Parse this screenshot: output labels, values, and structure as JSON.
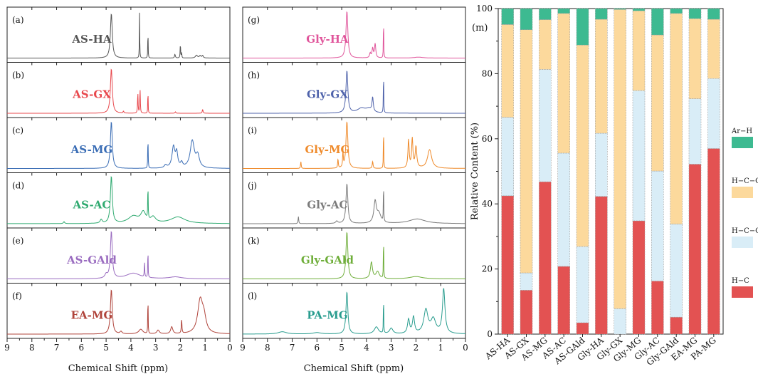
{
  "chart_data": [
    {
      "type": "line",
      "xlabel": "Chemical Shift (ppm)",
      "xlim": [
        9,
        0
      ],
      "x_ticks": [
        "9",
        "8",
        "7",
        "6",
        "5",
        "4",
        "3",
        "2",
        "1",
        "0"
      ],
      "panels": [
        {
          "letter": "(a)",
          "name": "AS-HA",
          "color": "#555555",
          "peaks": [
            [
              4.79,
              0.95,
              0.045
            ],
            [
              3.65,
              1.0,
              0.008
            ],
            [
              3.31,
              0.65,
              0.008
            ],
            [
              2.22,
              0.08,
              0.02
            ],
            [
              2.0,
              0.3,
              0.012
            ],
            [
              1.95,
              0.12,
              0.01
            ],
            [
              1.35,
              0.06,
              0.05
            ],
            [
              1.2,
              0.05,
              0.04
            ],
            [
              1.1,
              0.05,
              0.03
            ]
          ]
        },
        {
          "letter": "(b)",
          "name": "AS-GX",
          "color": "#e8484d",
          "peaks": [
            [
              4.79,
              0.95,
              0.045
            ],
            [
              3.72,
              0.45,
              0.012
            ],
            [
              3.63,
              0.55,
              0.012
            ],
            [
              3.31,
              0.55,
              0.008
            ],
            [
              4.3,
              0.04,
              0.02
            ],
            [
              2.2,
              0.03,
              0.02
            ],
            [
              1.1,
              0.08,
              0.02
            ]
          ]
        },
        {
          "letter": "(c)",
          "name": "AS-MG",
          "color": "#3a6db5",
          "peaks": [
            [
              4.79,
              1.0,
              0.045
            ],
            [
              3.31,
              0.68,
              0.01
            ],
            [
              2.28,
              0.45,
              0.07
            ],
            [
              2.15,
              0.3,
              0.05
            ],
            [
              1.95,
              0.1,
              0.05
            ],
            [
              1.52,
              0.58,
              0.1
            ],
            [
              1.3,
              0.25,
              0.08
            ],
            [
              2.6,
              0.06,
              0.06
            ]
          ]
        },
        {
          "letter": "(d)",
          "name": "AS-AC",
          "color": "#2faa70",
          "peaks": [
            [
              4.79,
              1.0,
              0.045
            ],
            [
              3.31,
              0.75,
              0.01
            ],
            [
              3.9,
              0.15,
              0.25
            ],
            [
              3.5,
              0.22,
              0.12
            ],
            [
              3.1,
              0.12,
              0.12
            ],
            [
              2.1,
              0.14,
              0.35
            ],
            [
              5.2,
              0.08,
              0.05
            ],
            [
              6.7,
              0.04,
              0.03
            ]
          ]
        },
        {
          "letter": "(e)",
          "name": "AS-GAld",
          "color": "#9a6cc0",
          "peaks": [
            [
              4.79,
              1.0,
              0.045
            ],
            [
              3.31,
              0.7,
              0.008
            ],
            [
              3.45,
              0.35,
              0.01
            ],
            [
              3.9,
              0.12,
              0.35
            ],
            [
              5.0,
              0.08,
              0.06
            ],
            [
              2.2,
              0.04,
              0.3
            ]
          ]
        },
        {
          "letter": "(f)",
          "name": "EA-MG",
          "color": "#b0443b",
          "peaks": [
            [
              4.79,
              0.95,
              0.045
            ],
            [
              3.31,
              0.9,
              0.008
            ],
            [
              1.2,
              0.7,
              0.12
            ],
            [
              1.05,
              0.3,
              0.1
            ],
            [
              1.95,
              0.3,
              0.015
            ],
            [
              2.35,
              0.15,
              0.05
            ],
            [
              2.9,
              0.08,
              0.06
            ],
            [
              3.6,
              0.1,
              0.1
            ],
            [
              4.4,
              0.05,
              0.05
            ]
          ]
        }
      ]
    },
    {
      "type": "line",
      "xlabel": "Chemical Shift (ppm)",
      "xlim": [
        9,
        0
      ],
      "x_ticks": [
        "9",
        "8",
        "7",
        "6",
        "5",
        "4",
        "3",
        "2",
        "1",
        "0"
      ],
      "panels": [
        {
          "letter": "(g)",
          "name": "Gly-HA",
          "color": "#e0559b",
          "peaks": [
            [
              4.79,
              1.0,
              0.045
            ],
            [
              3.31,
              0.95,
              0.008
            ],
            [
              3.65,
              0.3,
              0.03
            ],
            [
              3.75,
              0.2,
              0.03
            ],
            [
              3.85,
              0.1,
              0.03
            ],
            [
              1.9,
              0.02,
              0.2
            ]
          ]
        },
        {
          "letter": "(h)",
          "name": "Gly-GX",
          "color": "#4f63ab",
          "peaks": [
            [
              4.79,
              0.9,
              0.045
            ],
            [
              3.31,
              1.0,
              0.008
            ],
            [
              3.75,
              0.3,
              0.03
            ],
            [
              4.2,
              0.1,
              0.2
            ],
            [
              3.9,
              0.08,
              0.15
            ]
          ]
        },
        {
          "letter": "(i)",
          "name": "Gly-MG",
          "color": "#ef8a2a",
          "peaks": [
            [
              4.79,
              1.0,
              0.045
            ],
            [
              3.31,
              1.0,
              0.008
            ],
            [
              2.3,
              0.6,
              0.03
            ],
            [
              2.15,
              0.62,
              0.03
            ],
            [
              2.0,
              0.45,
              0.04
            ],
            [
              1.45,
              0.4,
              0.1
            ],
            [
              4.95,
              0.35,
              0.015
            ],
            [
              5.15,
              0.2,
              0.015
            ],
            [
              6.65,
              0.15,
              0.015
            ],
            [
              3.75,
              0.15,
              0.02
            ]
          ]
        },
        {
          "letter": "(j)",
          "name": "Gly-AC",
          "color": "#7b7b7b",
          "peaks": [
            [
              4.79,
              0.85,
              0.045
            ],
            [
              3.31,
              0.95,
              0.008
            ],
            [
              3.65,
              0.45,
              0.06
            ],
            [
              3.5,
              0.2,
              0.1
            ],
            [
              1.95,
              0.1,
              0.4
            ],
            [
              6.75,
              0.15,
              0.015
            ],
            [
              5.2,
              0.05,
              0.05
            ]
          ]
        },
        {
          "letter": "(k)",
          "name": "Gly-GAld",
          "color": "#6fae3a",
          "peaks": [
            [
              4.79,
              1.0,
              0.045
            ],
            [
              3.31,
              1.0,
              0.008
            ],
            [
              3.8,
              0.35,
              0.05
            ],
            [
              3.55,
              0.15,
              0.08
            ],
            [
              2.0,
              0.05,
              0.3
            ]
          ]
        },
        {
          "letter": "(l)",
          "name": "PA-MG",
          "color": "#2a9d8f",
          "peaks": [
            [
              4.79,
              0.9,
              0.045
            ],
            [
              3.31,
              0.9,
              0.008
            ],
            [
              0.88,
              0.95,
              0.06
            ],
            [
              1.3,
              0.3,
              0.12
            ],
            [
              1.6,
              0.5,
              0.1
            ],
            [
              2.1,
              0.35,
              0.05
            ],
            [
              2.3,
              0.3,
              0.05
            ],
            [
              3.0,
              0.12,
              0.08
            ],
            [
              3.6,
              0.15,
              0.1
            ],
            [
              7.4,
              0.05,
              0.2
            ],
            [
              6.0,
              0.03,
              0.2
            ]
          ]
        }
      ]
    },
    {
      "type": "bar",
      "stacked": true,
      "panel_letter": "(m)",
      "ylabel": "Relative Content (%)",
      "ylim": [
        0,
        100
      ],
      "y_ticks": [
        "0",
        "20",
        "40",
        "60",
        "80",
        "100"
      ],
      "categories": [
        "AS-HA",
        "AS-GX",
        "AS-MG",
        "AS-AC",
        "AS-GAld",
        "Gly-HA",
        "Gly-GX",
        "Gly-MG",
        "Gly-AC",
        "Gly-GAld",
        "EA-MG",
        "PA-MG"
      ],
      "series": [
        {
          "name": "H−C",
          "color": "#e35252",
          "values": [
            42.5,
            13.5,
            46.8,
            20.8,
            3.5,
            42.3,
            0.0,
            34.8,
            16.3,
            5.2,
            52.2,
            57.0
          ]
        },
        {
          "name": "H−C−C=",
          "color": "#d9edf7",
          "values": [
            24.1,
            5.3,
            34.5,
            34.8,
            23.4,
            19.4,
            7.8,
            40.0,
            33.8,
            28.6,
            20.1,
            21.5
          ]
        },
        {
          "name": "H−C−O",
          "color": "#fcd99c",
          "values": [
            28.5,
            74.7,
            15.3,
            42.9,
            61.9,
            35.0,
            91.9,
            24.5,
            41.8,
            64.7,
            24.6,
            18.2
          ]
        },
        {
          "name": "Ar−H",
          "color": "#3dba91",
          "values": [
            4.9,
            6.5,
            3.4,
            1.5,
            11.2,
            3.3,
            0.3,
            0.7,
            8.1,
            1.5,
            3.1,
            3.3
          ]
        }
      ]
    }
  ]
}
